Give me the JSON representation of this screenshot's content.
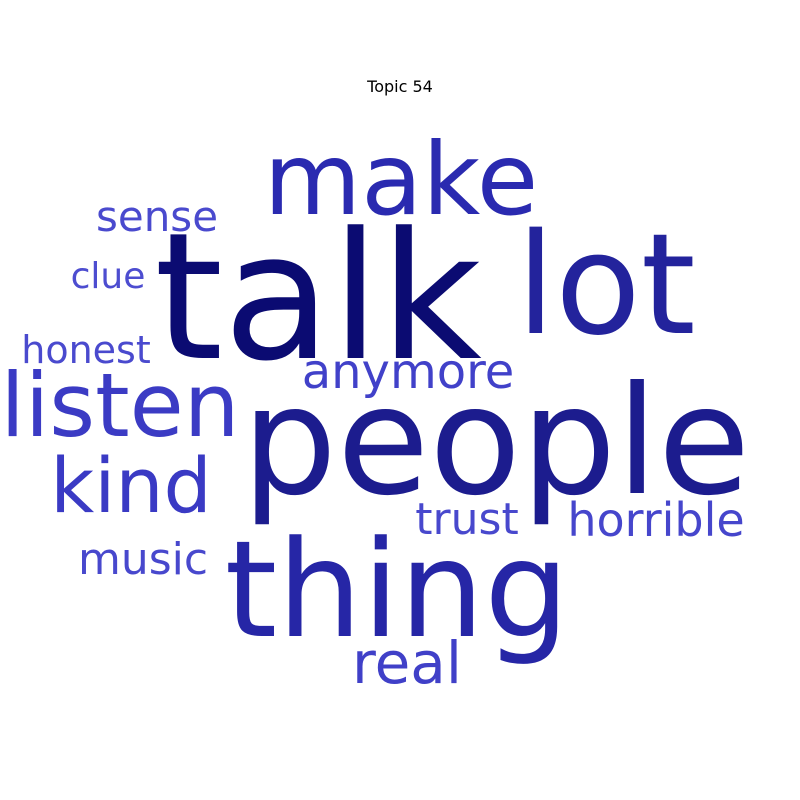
{
  "title": "Topic 54",
  "words": [
    {
      "text": "talk",
      "color": "#0b0b72"
    },
    {
      "text": "people",
      "color": "#1c1c8e"
    },
    {
      "text": "thing",
      "color": "#2626a6"
    },
    {
      "text": "lot",
      "color": "#23239c"
    },
    {
      "text": "make",
      "color": "#2a2ab0"
    },
    {
      "text": "listen",
      "color": "#3b3bc4"
    },
    {
      "text": "kind",
      "color": "#3a3ac4"
    },
    {
      "text": "real",
      "color": "#4040c8"
    },
    {
      "text": "anymore",
      "color": "#4141c9"
    },
    {
      "text": "horrible",
      "color": "#4646cc"
    },
    {
      "text": "trust",
      "color": "#4848cd"
    },
    {
      "text": "music",
      "color": "#4848cd"
    },
    {
      "text": "sense",
      "color": "#4a4ace"
    },
    {
      "text": "honest",
      "color": "#4a4ace"
    },
    {
      "text": "clue",
      "color": "#4d4dd0"
    }
  ]
}
